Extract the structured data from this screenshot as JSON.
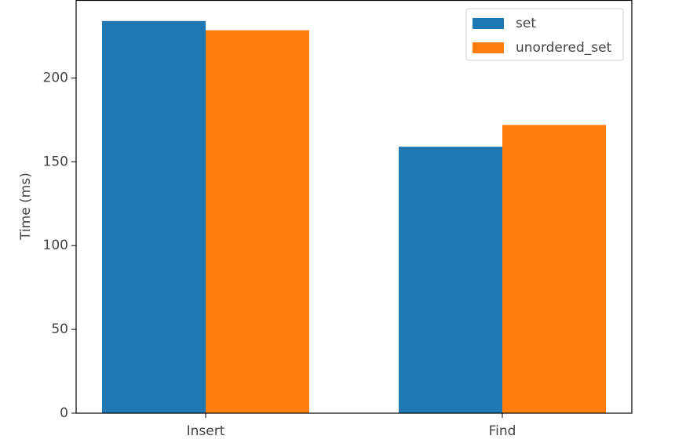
{
  "chart_data": {
    "type": "bar",
    "ylabel": "Time (ms)",
    "categories": [
      "Insert",
      "Find"
    ],
    "series": [
      {
        "name": "set",
        "color": "#1f77b4",
        "values": [
          234,
          159
        ]
      },
      {
        "name": "unordered_set",
        "color": "#ff7f0e",
        "values": [
          228.5,
          172
        ]
      }
    ],
    "ylim": [
      0,
      246.3
    ],
    "yticks": [
      0,
      50,
      100,
      150,
      200
    ],
    "grid": false,
    "legend": "upper right"
  }
}
